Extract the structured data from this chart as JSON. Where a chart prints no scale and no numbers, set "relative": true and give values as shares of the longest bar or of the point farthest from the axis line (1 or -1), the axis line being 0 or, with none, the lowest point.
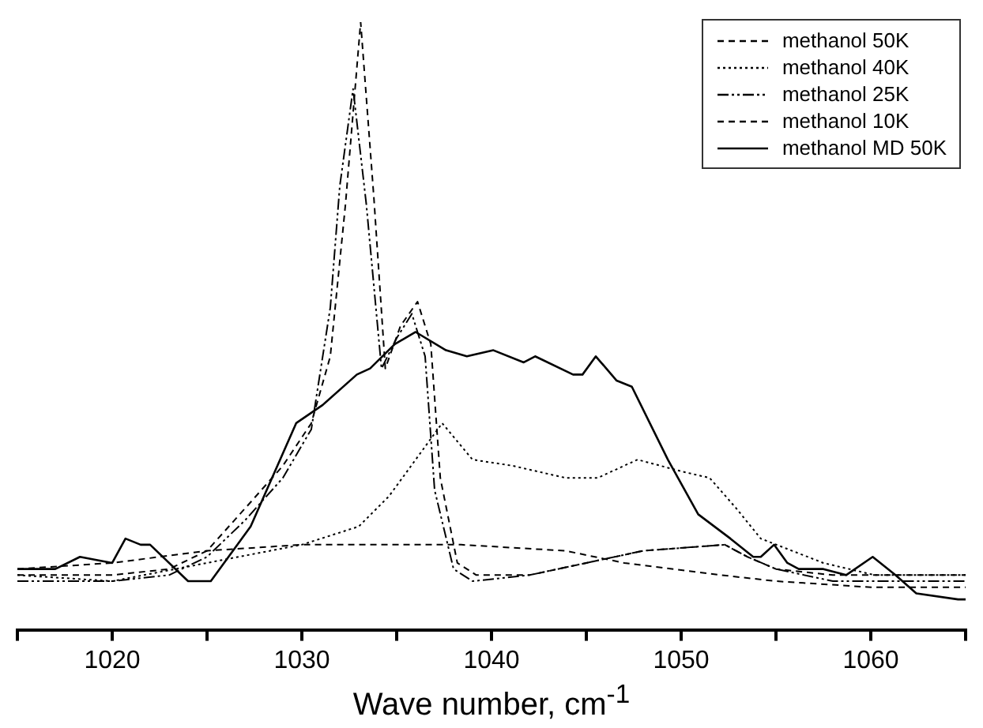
{
  "chart_data": {
    "type": "line",
    "relative": true,
    "xlabel": "Wave number, cm$^{-1}$",
    "xlim": [
      1015,
      1065
    ],
    "xticks": [
      {
        "value": 1015,
        "label": null
      },
      1020,
      {
        "value": 1025,
        "label": null
      },
      1030,
      {
        "value": 1035,
        "label": null
      },
      1040,
      {
        "value": 1045,
        "label": null
      },
      1050,
      {
        "value": 1055,
        "label": null
      },
      1060,
      {
        "value": 1065,
        "label": null
      }
    ],
    "legend": "top right",
    "grid": false,
    "marker": "none",
    "series": [
      {
        "name": "methanol 50K",
        "color": "#000000",
        "line_style": "dashed",
        "x": [
          1015,
          1020,
          1025,
          1030,
          1035,
          1038.4,
          1043.9,
          1047,
          1052.1,
          1055,
          1060,
          1065
        ],
        "values": [
          0.1,
          0.11,
          0.13,
          0.14,
          0.14,
          0.14,
          0.13,
          0.11,
          0.09,
          0.08,
          0.07,
          0.07
        ]
      },
      {
        "name": "methanol 40K",
        "color": "#000000",
        "line_style": "dotted",
        "x": [
          1015,
          1020,
          1025,
          1030,
          1033,
          1034.6,
          1036,
          1037.4,
          1039,
          1041.1,
          1043.9,
          1045.6,
          1047.7,
          1050.1,
          1051.5,
          1052.9,
          1054.2,
          1057.5,
          1060.2,
          1065
        ],
        "values": [
          0.09,
          0.08,
          0.11,
          0.14,
          0.17,
          0.22,
          0.28,
          0.34,
          0.28,
          0.27,
          0.25,
          0.25,
          0.28,
          0.26,
          0.25,
          0.2,
          0.15,
          0.11,
          0.09,
          0.09
        ]
      },
      {
        "name": "methanol 25K",
        "color": "#000000",
        "line_style": "dashed",
        "x": [
          1015,
          1020,
          1023,
          1025,
          1027,
          1029,
          1030.5,
          1031.5,
          1032,
          1032.7,
          1033.4,
          1034.2,
          1035,
          1035.8,
          1036.5,
          1037,
          1038,
          1039,
          1042,
          1045,
          1048,
          1052.3,
          1053.5,
          1055,
          1058,
          1065
        ],
        "values": [
          0.08,
          0.08,
          0.09,
          0.12,
          0.18,
          0.25,
          0.33,
          0.53,
          0.73,
          0.89,
          0.7,
          0.43,
          0.48,
          0.52,
          0.45,
          0.23,
          0.1,
          0.08,
          0.09,
          0.11,
          0.13,
          0.14,
          0.12,
          0.1,
          0.08,
          0.08
        ]
      },
      {
        "name": "methanol 10K",
        "color": "#000000",
        "line_style": "dashed",
        "x": [
          1015,
          1020,
          1023,
          1025,
          1027.3,
          1029,
          1030.5,
          1031.5,
          1032.3,
          1033.1,
          1033.8,
          1034.4,
          1035.2,
          1036.1,
          1036.8,
          1037.3,
          1038.2,
          1039.2,
          1042,
          1045,
          1048,
          1052.3,
          1053.5,
          1055,
          1058,
          1065
        ],
        "values": [
          0.09,
          0.09,
          0.1,
          0.13,
          0.21,
          0.27,
          0.34,
          0.45,
          0.7,
          1.0,
          0.71,
          0.43,
          0.5,
          0.54,
          0.47,
          0.25,
          0.11,
          0.09,
          0.09,
          0.11,
          0.13,
          0.14,
          0.12,
          0.1,
          0.09,
          0.09
        ]
      },
      {
        "name": "methanol MD 50K",
        "color": "#000000",
        "line_style": "solid",
        "x": [
          1015,
          1017,
          1018.3,
          1020,
          1020.7,
          1021.5,
          1022,
          1024,
          1025.2,
          1027.3,
          1029.7,
          1031.1,
          1032.9,
          1033.6,
          1034.9,
          1036,
          1037.6,
          1038.7,
          1040.1,
          1041.7,
          1042.3,
          1044.3,
          1044.8,
          1045.5,
          1046.6,
          1047.4,
          1049.3,
          1050.9,
          1052.6,
          1053.8,
          1054.2,
          1054.9,
          1055.6,
          1056.2,
          1057.5,
          1058.7,
          1060.1,
          1061.3,
          1062.4,
          1064.6,
          1065
        ],
        "values": [
          0.1,
          0.1,
          0.12,
          0.11,
          0.15,
          0.14,
          0.14,
          0.08,
          0.08,
          0.17,
          0.34,
          0.37,
          0.42,
          0.43,
          0.47,
          0.49,
          0.46,
          0.45,
          0.46,
          0.44,
          0.45,
          0.42,
          0.42,
          0.45,
          0.41,
          0.4,
          0.28,
          0.19,
          0.15,
          0.12,
          0.12,
          0.14,
          0.11,
          0.1,
          0.1,
          0.09,
          0.12,
          0.09,
          0.06,
          0.05,
          0.05
        ]
      }
    ]
  }
}
